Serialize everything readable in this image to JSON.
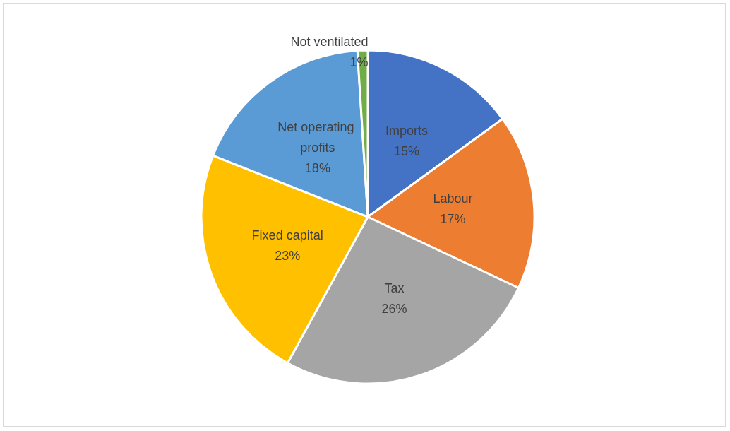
{
  "chart_data": {
    "type": "pie",
    "categories": [
      "Imports",
      "Labour",
      "Tax",
      "Fixed capital",
      "Net operating profits",
      "Not ventilated"
    ],
    "values": [
      15,
      17,
      26,
      23,
      18,
      1
    ],
    "colors": [
      "#4472c4",
      "#ed7d31",
      "#a5a5a5",
      "#ffc000",
      "#5b9bd5",
      "#70ad47"
    ],
    "value_labels": [
      "15%",
      "17%",
      "26%",
      "23%",
      "18%",
      "1%"
    ],
    "legend": false
  }
}
